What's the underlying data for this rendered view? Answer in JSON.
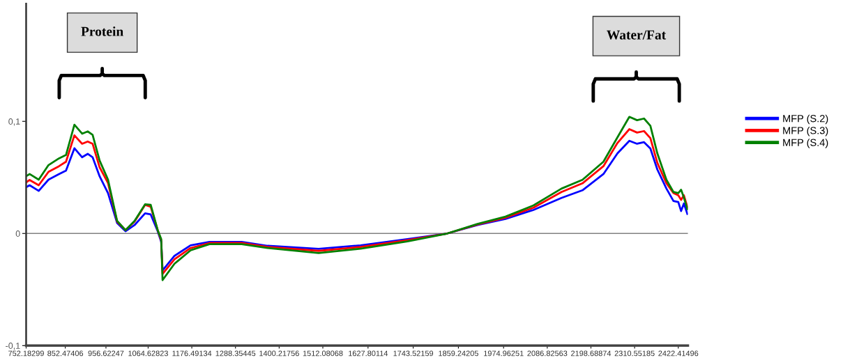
{
  "chart_data": {
    "type": "line",
    "x": [
      754.0,
      761.1,
      784.4,
      809.5,
      836.4,
      854.3,
      875.8,
      895.6,
      909.9,
      922.4,
      940.4,
      961.9,
      985.2,
      1006.7,
      1029.9,
      1056.8,
      1071.2,
      1089.1,
      1098.1,
      1101.6,
      1132.1,
      1173.3,
      1221.7,
      1304.2,
      1370.4,
      1501.3,
      1608.8,
      1728.9,
      1831.0,
      1908.1,
      1979.8,
      2051.5,
      2123.2,
      2176.9,
      2230.7,
      2266.6,
      2297.1,
      2316.8,
      2334.7,
      2350.9,
      2368.8,
      2392.1,
      2410.0,
      2422.4,
      2429.6,
      2436.8,
      2445.7
    ],
    "series": [
      {
        "name": "MFP (S.2)",
        "color": "#0000ff",
        "values": [
          0.0416,
          0.043,
          0.038,
          0.048,
          0.053,
          0.056,
          0.076,
          0.068,
          0.071,
          0.068,
          0.051,
          0.036,
          0.0093,
          0.002,
          0.0075,
          0.018,
          0.017,
          0.002,
          -0.0075,
          -0.033,
          -0.02,
          -0.0106,
          -0.0075,
          -0.0075,
          -0.011,
          -0.0137,
          -0.0106,
          -0.005,
          0,
          0.0075,
          0.013,
          0.021,
          0.0317,
          0.0385,
          0.053,
          0.0714,
          0.0826,
          0.08,
          0.0814,
          0.0758,
          0.057,
          0.04,
          0.029,
          0.028,
          0.02,
          0.0267,
          0.0174
        ]
      },
      {
        "name": "MFP (S.3)",
        "color": "#ff0000",
        "values": [
          0.046,
          0.0477,
          0.043,
          0.055,
          0.06,
          0.064,
          0.0875,
          0.08,
          0.082,
          0.08,
          0.059,
          0.045,
          0.0106,
          0.003,
          0.0106,
          0.0255,
          0.0238,
          0.003,
          -0.006,
          -0.036,
          -0.023,
          -0.013,
          -0.0085,
          -0.0085,
          -0.012,
          -0.0155,
          -0.012,
          -0.006,
          0,
          0.008,
          0.014,
          0.023,
          0.037,
          0.0447,
          0.06,
          0.0807,
          0.093,
          0.09,
          0.0913,
          0.085,
          0.063,
          0.0447,
          0.036,
          0.034,
          0.03,
          0.034,
          0.0236
        ]
      },
      {
        "name": "MFP (S.4)",
        "color": "#008000",
        "values": [
          0.0515,
          0.053,
          0.048,
          0.061,
          0.067,
          0.07,
          0.097,
          0.089,
          0.091,
          0.088,
          0.065,
          0.048,
          0.0112,
          0.003,
          0.0112,
          0.026,
          0.0255,
          0.003,
          -0.005,
          -0.0416,
          -0.027,
          -0.015,
          -0.0095,
          -0.0095,
          -0.013,
          -0.0175,
          -0.0135,
          -0.007,
          0,
          0.0085,
          0.015,
          0.025,
          0.04,
          0.0478,
          0.064,
          0.0857,
          0.104,
          0.101,
          0.1025,
          0.096,
          0.0714,
          0.0478,
          0.037,
          0.036,
          0.039,
          0.032,
          0.0217
        ]
      }
    ],
    "xlim": [
      752.18299,
      2447
    ],
    "xticks": [
      {
        "value": 752.18299,
        "label": "752.18299"
      },
      {
        "value": 852.47406,
        "label": "852.47406"
      },
      {
        "value": 956.62247,
        "label": "956.62247"
      },
      {
        "value": 1064.62823,
        "label": "1064.62823"
      },
      {
        "value": 1176.49134,
        "label": "1176.49134"
      },
      {
        "value": 1288.35445,
        "label": "1288.35445"
      },
      {
        "value": 1400.21756,
        "label": "1400.21756"
      },
      {
        "value": 1512.08068,
        "label": "1512.08068"
      },
      {
        "value": 1627.80114,
        "label": "1627.80114"
      },
      {
        "value": 1743.52159,
        "label": "1743.52159"
      },
      {
        "value": 1859.24205,
        "label": "1859.24205"
      },
      {
        "value": 1974.96251,
        "label": "1974.96251"
      },
      {
        "value": 2086.82563,
        "label": "2086.82563"
      },
      {
        "value": 2198.68874,
        "label": "2198.68874"
      },
      {
        "value": 2310.55185,
        "label": "2310.55185"
      },
      {
        "value": 2422.41496,
        "label": "2422.41496"
      }
    ],
    "ylim": [
      -0.1,
      0.205
    ],
    "yticks": [
      {
        "value": -0.1,
        "label": "-0,1"
      },
      0,
      {
        "value": 0.1,
        "label": "0,1"
      }
    ],
    "ref_lines": [
      {
        "axis": "y",
        "value": 0,
        "color": "#808080"
      }
    ],
    "annotations": [
      "Protein",
      "Water/Fat"
    ],
    "legend": "right",
    "grid": false,
    "marker": "none",
    "line_style": "solid"
  }
}
